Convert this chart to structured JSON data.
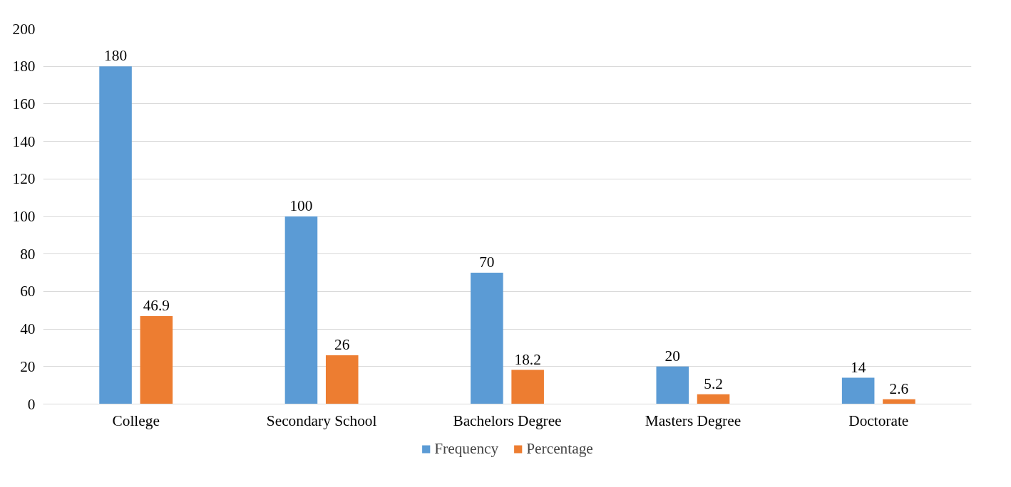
{
  "chart_data": {
    "type": "bar",
    "categories": [
      "College",
      "Secondary School",
      "Bachelors Degree",
      "Masters Degree",
      "Doctorate"
    ],
    "series": [
      {
        "name": "Frequency",
        "color": "#5b9bd5",
        "values": [
          180,
          100,
          70,
          20,
          14
        ]
      },
      {
        "name": "Percentage",
        "color": "#ed7d31",
        "values": [
          46.9,
          26,
          18.2,
          5.2,
          2.6
        ]
      }
    ],
    "ylim": [
      0,
      200
    ],
    "yticks": [
      0,
      20,
      40,
      60,
      80,
      100,
      120,
      140,
      160,
      180,
      200
    ],
    "grid": "y",
    "legend": "bottom",
    "data_labels": true
  }
}
